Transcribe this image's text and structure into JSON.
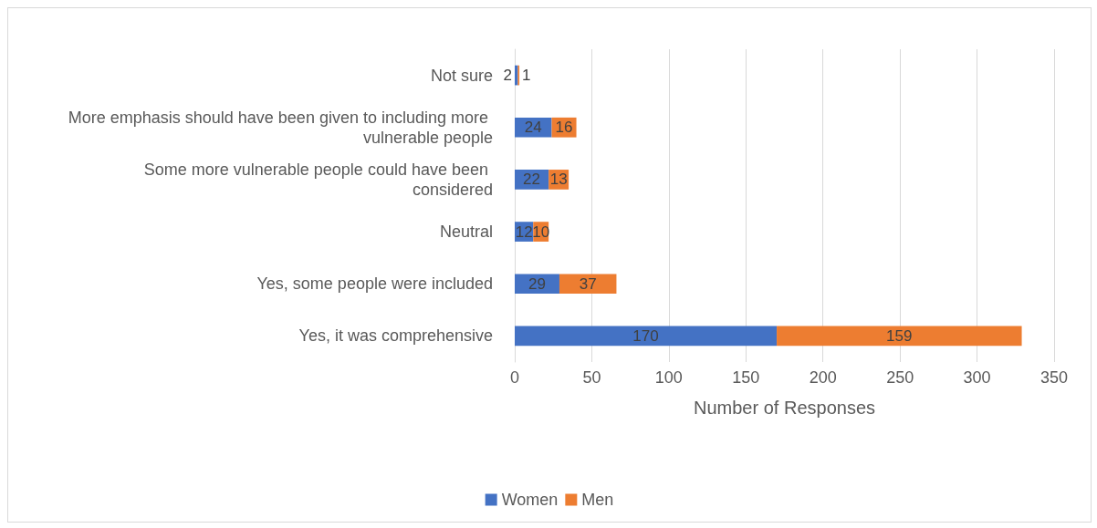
{
  "chart_data": {
    "type": "bar",
    "orientation": "horizontal",
    "stacked": true,
    "xlabel": "Number of Responses",
    "categories": [
      "Not sure",
      "More emphasis should have been given to including more vulnerable people",
      "Some more vulnerable people could have been considered",
      "Neutral",
      "Yes, some people were included",
      "Yes, it was comprehensive"
    ],
    "series": [
      {
        "name": "Women",
        "color": "#4472c4",
        "values": [
          2,
          24,
          22,
          12,
          29,
          170
        ]
      },
      {
        "name": "Men",
        "color": "#ed7d31",
        "values": [
          1,
          16,
          13,
          10,
          37,
          159
        ]
      }
    ],
    "xlim": [
      0,
      350
    ],
    "xticks": [
      0,
      50,
      100,
      150,
      200,
      250,
      300,
      350
    ],
    "grid": "x",
    "legend": "bottom",
    "data_labels": true
  }
}
